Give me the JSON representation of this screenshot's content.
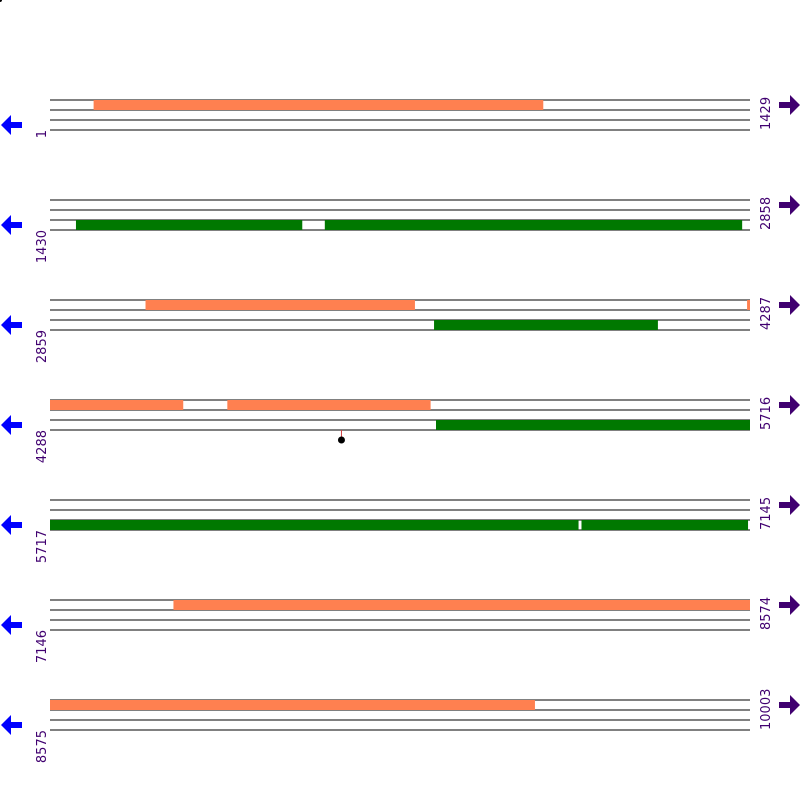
{
  "colors": {
    "forward": "#ff8050",
    "reverse": "#007800",
    "line": "#000000",
    "left_arrow": "#0000ff",
    "right_arrow": "#400070",
    "label": "#400070",
    "marker": "#d04040"
  },
  "rows": [
    {
      "start": "1",
      "end": "1429",
      "start_bp": 1,
      "end_bp": 1429,
      "features": [
        {
          "strand": 1,
          "from": 90,
          "to": 1007
        }
      ],
      "markers": []
    },
    {
      "start": "1430",
      "end": "2858",
      "start_bp": 1430,
      "end_bp": 2858,
      "features": [
        {
          "strand": -1,
          "from": 1483,
          "to": 1944
        },
        {
          "strand": -1,
          "from": 1991,
          "to": 2842
        }
      ],
      "markers": []
    },
    {
      "start": "2859",
      "end": "4287",
      "start_bp": 2859,
      "end_bp": 4287,
      "features": [
        {
          "strand": 1,
          "from": 3054,
          "to": 3603
        },
        {
          "strand": 1,
          "from": 4282,
          "to": 4287
        },
        {
          "strand": -1,
          "from": 3643,
          "to": 4099
        }
      ],
      "markers": []
    },
    {
      "start": "4288",
      "end": "5716",
      "start_bp": 4288,
      "end_bp": 5716,
      "features": [
        {
          "strand": 1,
          "from": 4288,
          "to": 4559
        },
        {
          "strand": 1,
          "from": 4650,
          "to": 5064
        },
        {
          "strand": -1,
          "from": 5076,
          "to": 5716
        }
      ],
      "markers": [
        {
          "position": 4883
        }
      ]
    },
    {
      "start": "5717",
      "end": "7145",
      "start_bp": 5717,
      "end_bp": 7145,
      "features": [
        {
          "strand": -1,
          "from": 5717,
          "to": 6795
        },
        {
          "strand": -1,
          "from": 6802,
          "to": 7141
        }
      ],
      "markers": []
    },
    {
      "start": "7146",
      "end": "8574",
      "start_bp": 7146,
      "end_bp": 8574,
      "features": [
        {
          "strand": 1,
          "from": 7398,
          "to": 8574
        }
      ],
      "markers": []
    },
    {
      "start": "8575",
      "end": "10003",
      "start_bp": 8575,
      "end_bp": 10003,
      "features": [
        {
          "strand": 1,
          "from": 8575,
          "to": 9564
        }
      ],
      "markers": []
    }
  ]
}
